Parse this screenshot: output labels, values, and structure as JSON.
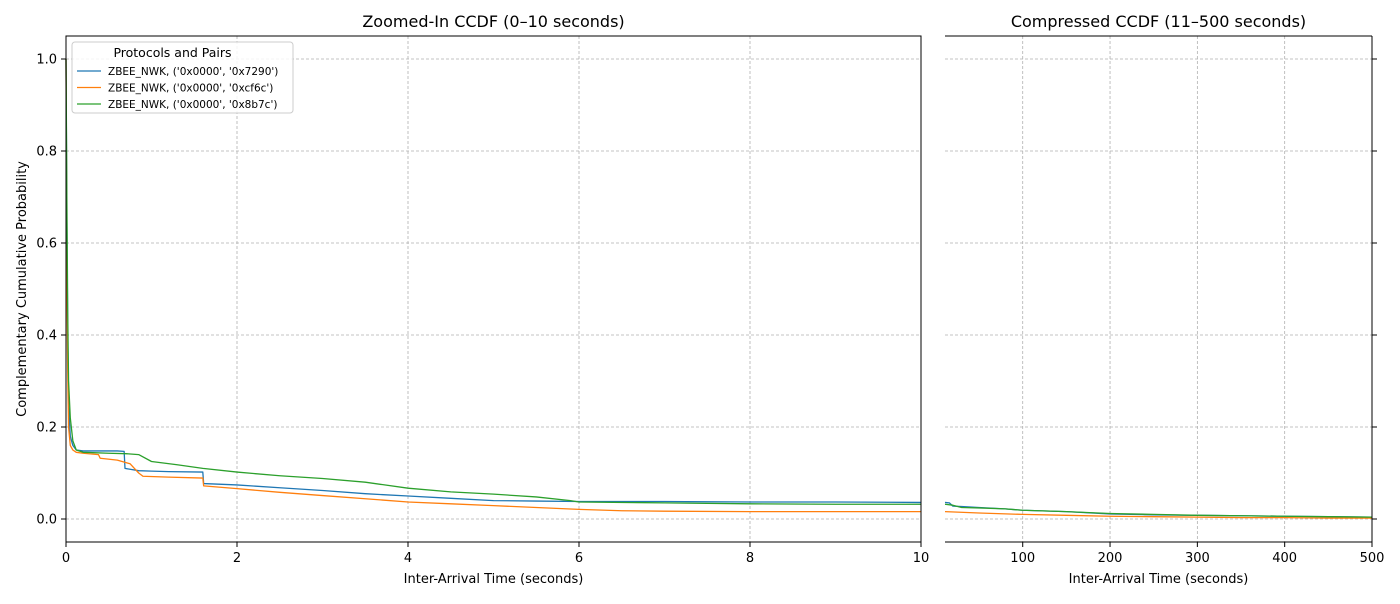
{
  "chart_data": [
    {
      "type": "line",
      "id": "left",
      "title": "Zoomed-In CCDF (0–10 seconds)",
      "xlabel": "Inter-Arrival Time (seconds)",
      "ylabel": "Complementary Cumulative Probability",
      "xlim": [
        0,
        10
      ],
      "ylim": [
        -0.05,
        1.05
      ],
      "xticks": [
        0,
        2,
        4,
        6,
        8,
        10
      ],
      "xtick_labels": [
        "0",
        "2",
        "4",
        "6",
        "8",
        "10"
      ],
      "yticks": [
        0.0,
        0.2,
        0.4,
        0.6,
        0.8,
        1.0
      ],
      "ytick_labels": [
        "0.0",
        "0.2",
        "0.4",
        "0.6",
        "0.8",
        "1.0"
      ],
      "grid": true,
      "legend": {
        "title": "Protocols and Pairs",
        "placement": "top-left"
      },
      "series": [
        {
          "name": "ZBEE_NWK, ('0x0000', '0x7290')",
          "color": "#1f77b4",
          "x": [
            0,
            0.01,
            0.02,
            0.03,
            0.05,
            0.08,
            0.12,
            0.2,
            0.4,
            0.6,
            0.68,
            0.69,
            0.85,
            1.0,
            1.2,
            1.6,
            1.61,
            2.0,
            2.5,
            3.0,
            3.5,
            4.0,
            4.5,
            5.0,
            5.5,
            6.0,
            7.0,
            8.0,
            9.0,
            10.0
          ],
          "y": [
            1.0,
            0.65,
            0.4,
            0.25,
            0.18,
            0.16,
            0.15,
            0.148,
            0.148,
            0.148,
            0.147,
            0.11,
            0.105,
            0.104,
            0.103,
            0.102,
            0.077,
            0.074,
            0.068,
            0.062,
            0.055,
            0.05,
            0.045,
            0.04,
            0.039,
            0.038,
            0.038,
            0.037,
            0.037,
            0.036
          ]
        },
        {
          "name": "ZBEE_NWK, ('0x0000', '0xcf6c')",
          "color": "#ff7f0e",
          "x": [
            0,
            0.01,
            0.02,
            0.03,
            0.05,
            0.08,
            0.12,
            0.2,
            0.38,
            0.4,
            0.6,
            0.75,
            0.85,
            0.9,
            1.2,
            1.6,
            1.61,
            2.0,
            2.5,
            3.0,
            3.5,
            4.0,
            4.5,
            5.0,
            5.5,
            6.0,
            6.5,
            7.0,
            8.0,
            9.0,
            10.0
          ],
          "y": [
            1.0,
            0.55,
            0.32,
            0.2,
            0.16,
            0.15,
            0.145,
            0.143,
            0.14,
            0.132,
            0.128,
            0.12,
            0.1,
            0.093,
            0.091,
            0.089,
            0.072,
            0.066,
            0.058,
            0.051,
            0.044,
            0.037,
            0.033,
            0.029,
            0.025,
            0.021,
            0.018,
            0.017,
            0.016,
            0.016,
            0.016
          ]
        },
        {
          "name": "ZBEE_NWK, ('0x0000', '0x8b7c')",
          "color": "#2ca02c",
          "x": [
            0,
            0.01,
            0.02,
            0.03,
            0.05,
            0.08,
            0.12,
            0.2,
            0.5,
            0.7,
            0.85,
            1.0,
            1.3,
            1.6,
            2.0,
            2.5,
            3.0,
            3.5,
            4.0,
            4.5,
            5.0,
            5.5,
            5.9,
            6.0,
            7.0,
            8.0,
            9.0,
            10.0
          ],
          "y": [
            1.0,
            0.7,
            0.45,
            0.3,
            0.22,
            0.17,
            0.15,
            0.145,
            0.143,
            0.142,
            0.14,
            0.125,
            0.118,
            0.11,
            0.102,
            0.094,
            0.088,
            0.08,
            0.067,
            0.059,
            0.054,
            0.048,
            0.04,
            0.037,
            0.035,
            0.033,
            0.032,
            0.032
          ]
        }
      ]
    },
    {
      "type": "line",
      "id": "right",
      "title": "Compressed CCDF (11–500 seconds)",
      "xlabel": "Inter-Arrival Time (seconds)",
      "ylabel": "",
      "xlim": [
        11,
        500
      ],
      "ylim": [
        -0.05,
        1.05
      ],
      "xticks": [
        100,
        200,
        300,
        400,
        500
      ],
      "xtick_labels": [
        "100",
        "200",
        "300",
        "400",
        "500"
      ],
      "yticks": [
        0.0,
        0.2,
        0.4,
        0.6,
        0.8,
        1.0
      ],
      "grid": true,
      "series": [
        {
          "name": "ZBEE_NWK, ('0x0000', '0x7290')",
          "color": "#1f77b4",
          "x": [
            11,
            16,
            20,
            30,
            50,
            80,
            100,
            150,
            200,
            250,
            300,
            350,
            400,
            450,
            500
          ],
          "y": [
            0.036,
            0.035,
            0.028,
            0.027,
            0.025,
            0.022,
            0.019,
            0.016,
            0.011,
            0.009,
            0.008,
            0.007,
            0.006,
            0.005,
            0.004
          ]
        },
        {
          "name": "ZBEE_NWK, ('0x0000', '0xcf6c')",
          "color": "#ff7f0e",
          "x": [
            11,
            50,
            100,
            150,
            200,
            250,
            300,
            350,
            400,
            450,
            500
          ],
          "y": [
            0.016,
            0.013,
            0.01,
            0.008,
            0.006,
            0.005,
            0.004,
            0.003,
            0.003,
            0.002,
            0.002
          ]
        },
        {
          "name": "ZBEE_NWK, ('0x0000', '0x8b7c')",
          "color": "#2ca02c",
          "x": [
            11,
            20,
            30,
            50,
            80,
            100,
            150,
            200,
            250,
            300,
            350,
            400,
            450,
            500
          ],
          "y": [
            0.032,
            0.03,
            0.025,
            0.024,
            0.022,
            0.019,
            0.016,
            0.012,
            0.01,
            0.008,
            0.007,
            0.006,
            0.005,
            0.004
          ]
        }
      ]
    }
  ]
}
